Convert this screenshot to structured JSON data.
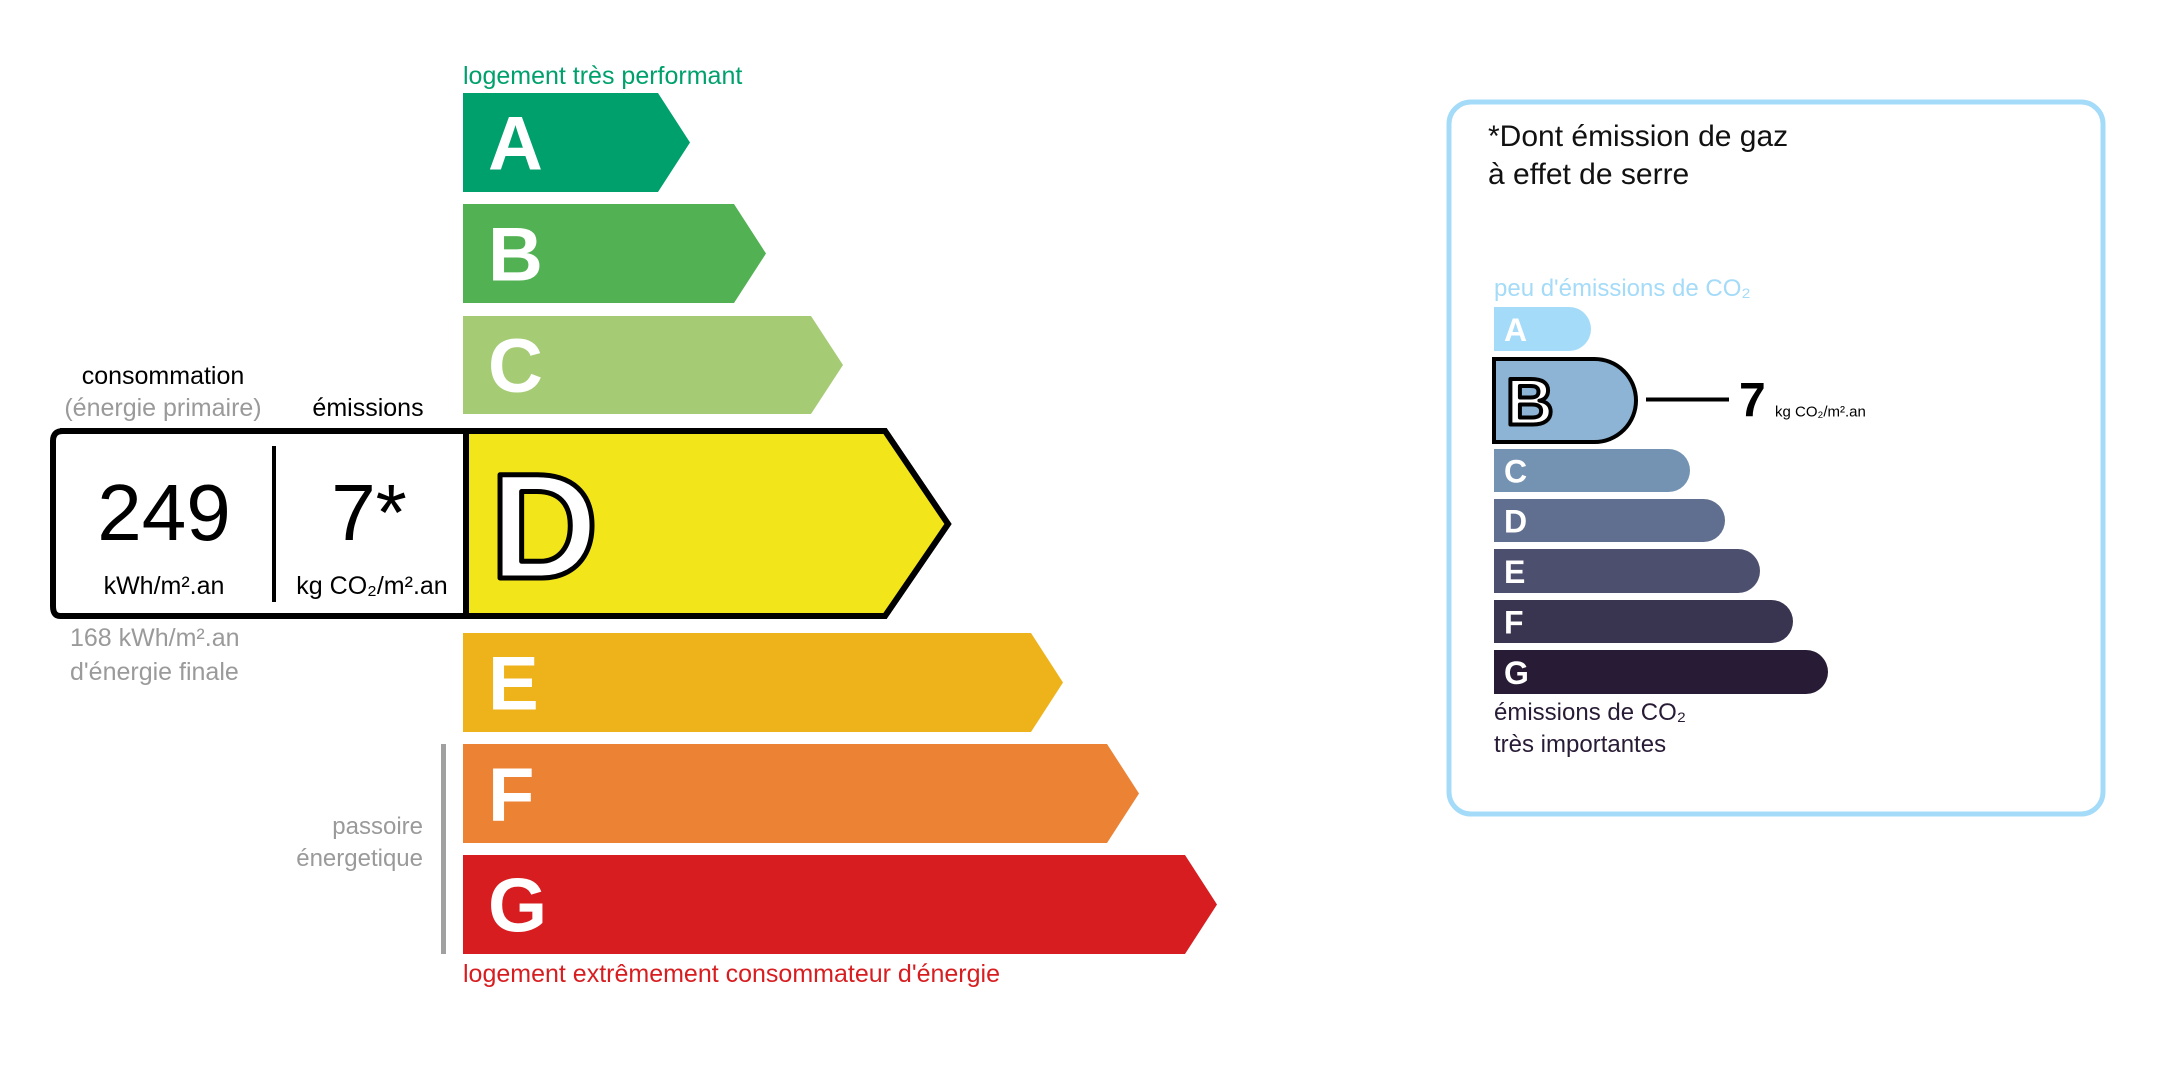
{
  "energy_label": {
    "top_caption": "logement très performant",
    "bottom_caption": "logement extrêmement consommateur d'énergie",
    "passoire_line1": "passoire",
    "passoire_line2": "énergetique",
    "top_color": "#00a06d",
    "bottom_color": "#d71d20",
    "classes": [
      {
        "letter": "A",
        "color": "#00a06d"
      },
      {
        "letter": "B",
        "color": "#52b153"
      },
      {
        "letter": "C",
        "color": "#a5cc74"
      },
      {
        "letter": "D",
        "color": "#f2e51a"
      },
      {
        "letter": "E",
        "color": "#eeb31a"
      },
      {
        "letter": "F",
        "color": "#eb8234"
      },
      {
        "letter": "G",
        "color": "#d71d20"
      }
    ],
    "current_class": "D",
    "consumption": {
      "heading": "consommation",
      "subheading": "(énergie primaire)",
      "value": "249",
      "unit": "kWh/m².an",
      "final_value": "168 kWh/m².an",
      "final_label": "d'énergie finale"
    },
    "emissions": {
      "heading": "émissions",
      "value": "7*",
      "unit": "kg CO₂/m².an"
    }
  },
  "ghg_panel": {
    "title_line1": "*Dont émission de gaz",
    "title_line2": "à effet de serre",
    "top_caption": "peu d'émissions de CO₂",
    "bottom_caption_line1": "émissions de CO₂",
    "bottom_caption_line2": "très importantes",
    "border_color": "#a4dbf8",
    "classes": [
      {
        "letter": "A",
        "color": "#a4dbf8"
      },
      {
        "letter": "B",
        "color": "#8db4d4"
      },
      {
        "letter": "C",
        "color": "#7493b3"
      },
      {
        "letter": "D",
        "color": "#606e8f"
      },
      {
        "letter": "E",
        "color": "#4d4f6e"
      },
      {
        "letter": "F",
        "color": "#393551"
      },
      {
        "letter": "G",
        "color": "#281b35"
      }
    ],
    "current_class": "B",
    "value": "7",
    "unit": "kg CO₂/m².an"
  }
}
